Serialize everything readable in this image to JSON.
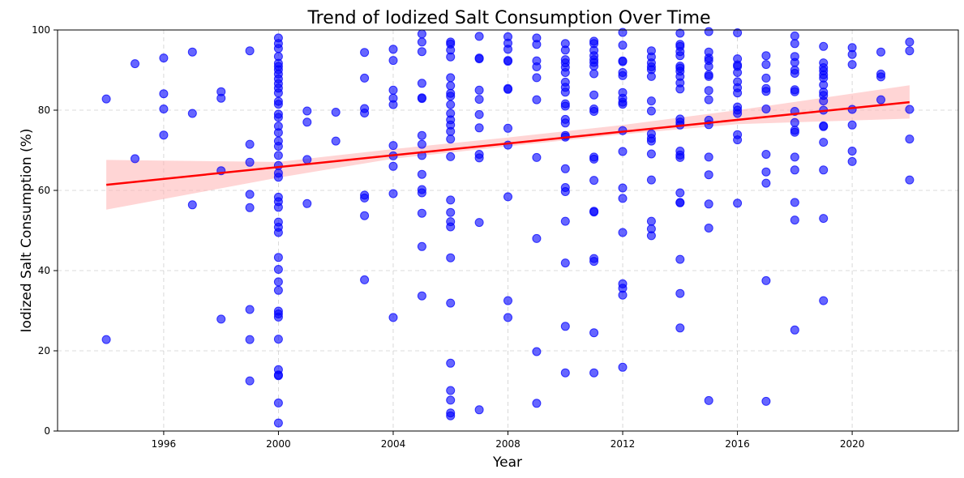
{
  "chart_data": {
    "type": "scatter",
    "title": "Trend of Iodized Salt Consumption Over Time",
    "xlabel": "Year",
    "ylabel": "Iodized Salt Consumption (%)",
    "xlim": [
      1992.3,
      2023.7
    ],
    "ylim": [
      0,
      100
    ],
    "xticks": [
      1996,
      2000,
      2004,
      2008,
      2012,
      2016,
      2020
    ],
    "yticks": [
      0,
      20,
      40,
      60,
      80,
      100
    ],
    "grid": true,
    "point_color": "#0000ff",
    "line_color": "#ff0000",
    "band_color": "#ffb3b3",
    "points": [
      [
        1994,
        82.8
      ],
      [
        1994,
        22.8
      ],
      [
        1995,
        91.6
      ],
      [
        1995,
        67.9
      ],
      [
        1996,
        93.0
      ],
      [
        1996,
        84.1
      ],
      [
        1996,
        80.3
      ],
      [
        1996,
        73.8
      ],
      [
        1997,
        94.5
      ],
      [
        1997,
        79.2
      ],
      [
        1997,
        56.4
      ],
      [
        1998,
        84.6
      ],
      [
        1998,
        83.0
      ],
      [
        1998,
        64.9
      ],
      [
        1998,
        27.9
      ],
      [
        1999,
        94.8
      ],
      [
        1999,
        71.5
      ],
      [
        1999,
        67.0
      ],
      [
        1999,
        59.0
      ],
      [
        1999,
        55.7
      ],
      [
        1999,
        30.3
      ],
      [
        1999,
        22.8
      ],
      [
        1999,
        12.5
      ],
      [
        2000,
        98.0
      ],
      [
        2000,
        96.6
      ],
      [
        2000,
        95.4
      ],
      [
        2000,
        93.4
      ],
      [
        2000,
        91.7
      ],
      [
        2000,
        90.9
      ],
      [
        2000,
        90.1
      ],
      [
        2000,
        89.0
      ],
      [
        2000,
        87.8
      ],
      [
        2000,
        86.6
      ],
      [
        2000,
        85.5
      ],
      [
        2000,
        84.3
      ],
      [
        2000,
        82.2
      ],
      [
        2000,
        81.5
      ],
      [
        2000,
        79.0
      ],
      [
        2000,
        78.2
      ],
      [
        2000,
        76.0
      ],
      [
        2000,
        74.4
      ],
      [
        2000,
        72.3
      ],
      [
        2000,
        71.0
      ],
      [
        2000,
        68.7
      ],
      [
        2000,
        66.2
      ],
      [
        2000,
        64.3
      ],
      [
        2000,
        63.3
      ],
      [
        2000,
        58.3
      ],
      [
        2000,
        57.2
      ],
      [
        2000,
        55.8
      ],
      [
        2000,
        52.1
      ],
      [
        2000,
        50.8
      ],
      [
        2000,
        49.5
      ],
      [
        2000,
        43.3
      ],
      [
        2000,
        40.3
      ],
      [
        2000,
        37.2
      ],
      [
        2000,
        35.1
      ],
      [
        2000,
        29.9
      ],
      [
        2000,
        29.2
      ],
      [
        2000,
        28.4
      ],
      [
        2000,
        22.9
      ],
      [
        2000,
        15.3
      ],
      [
        2000,
        14.0
      ],
      [
        2000,
        13.8
      ],
      [
        2000,
        7.0
      ],
      [
        2000,
        2.0
      ],
      [
        2001,
        79.8
      ],
      [
        2001,
        77.0
      ],
      [
        2001,
        67.7
      ],
      [
        2001,
        56.7
      ],
      [
        2002,
        79.5
      ],
      [
        2002,
        72.3
      ],
      [
        2003,
        94.4
      ],
      [
        2003,
        88.0
      ],
      [
        2003,
        80.4
      ],
      [
        2003,
        79.3
      ],
      [
        2003,
        58.8
      ],
      [
        2003,
        58.1
      ],
      [
        2003,
        53.7
      ],
      [
        2003,
        37.7
      ],
      [
        2004,
        95.2
      ],
      [
        2004,
        92.4
      ],
      [
        2004,
        85.0
      ],
      [
        2004,
        83.0
      ],
      [
        2004,
        81.4
      ],
      [
        2004,
        71.2
      ],
      [
        2004,
        68.6
      ],
      [
        2004,
        66.0
      ],
      [
        2004,
        59.2
      ],
      [
        2004,
        28.3
      ],
      [
        2005,
        99.0
      ],
      [
        2005,
        97.0
      ],
      [
        2005,
        94.6
      ],
      [
        2005,
        86.7
      ],
      [
        2005,
        83.1
      ],
      [
        2005,
        82.9
      ],
      [
        2005,
        73.7
      ],
      [
        2005,
        71.5
      ],
      [
        2005,
        68.7
      ],
      [
        2005,
        64.0
      ],
      [
        2005,
        60.2
      ],
      [
        2005,
        59.4
      ],
      [
        2005,
        54.3
      ],
      [
        2005,
        46.0
      ],
      [
        2005,
        33.7
      ],
      [
        2006,
        97.0
      ],
      [
        2006,
        96.5
      ],
      [
        2006,
        95.0
      ],
      [
        2006,
        93.3
      ],
      [
        2006,
        88.1
      ],
      [
        2006,
        86.1
      ],
      [
        2006,
        84.2
      ],
      [
        2006,
        83.5
      ],
      [
        2006,
        81.4
      ],
      [
        2006,
        79.2
      ],
      [
        2006,
        77.6
      ],
      [
        2006,
        76.3
      ],
      [
        2006,
        74.7
      ],
      [
        2006,
        72.8
      ],
      [
        2006,
        68.4
      ],
      [
        2006,
        57.6
      ],
      [
        2006,
        54.5
      ],
      [
        2006,
        52.2
      ],
      [
        2006,
        50.9
      ],
      [
        2006,
        43.2
      ],
      [
        2006,
        31.9
      ],
      [
        2006,
        16.9
      ],
      [
        2006,
        10.1
      ],
      [
        2006,
        7.7
      ],
      [
        2006,
        4.5
      ],
      [
        2006,
        3.8
      ],
      [
        2007,
        98.4
      ],
      [
        2007,
        93.0
      ],
      [
        2007,
        92.8
      ],
      [
        2007,
        85.0
      ],
      [
        2007,
        82.7
      ],
      [
        2007,
        78.9
      ],
      [
        2007,
        75.6
      ],
      [
        2007,
        69.0
      ],
      [
        2007,
        68.1
      ],
      [
        2007,
        52.0
      ],
      [
        2007,
        5.3
      ],
      [
        2008,
        98.3
      ],
      [
        2008,
        96.7
      ],
      [
        2008,
        95.2
      ],
      [
        2008,
        92.4
      ],
      [
        2008,
        92.2
      ],
      [
        2008,
        85.4
      ],
      [
        2008,
        85.2
      ],
      [
        2008,
        75.5
      ],
      [
        2008,
        71.3
      ],
      [
        2008,
        58.4
      ],
      [
        2008,
        32.5
      ],
      [
        2008,
        28.3
      ],
      [
        2009,
        98.0
      ],
      [
        2009,
        96.4
      ],
      [
        2009,
        92.3
      ],
      [
        2009,
        90.8
      ],
      [
        2009,
        88.1
      ],
      [
        2009,
        82.6
      ],
      [
        2009,
        68.2
      ],
      [
        2009,
        48.0
      ],
      [
        2009,
        19.8
      ],
      [
        2009,
        6.9
      ],
      [
        2010,
        96.6
      ],
      [
        2010,
        95.0
      ],
      [
        2010,
        92.6
      ],
      [
        2010,
        91.8
      ],
      [
        2010,
        90.7
      ],
      [
        2010,
        89.4
      ],
      [
        2010,
        87.0
      ],
      [
        2010,
        85.7
      ],
      [
        2010,
        84.5
      ],
      [
        2010,
        81.6
      ],
      [
        2010,
        81.0
      ],
      [
        2010,
        77.7
      ],
      [
        2010,
        76.8
      ],
      [
        2010,
        73.7
      ],
      [
        2010,
        73.3
      ],
      [
        2010,
        65.4
      ],
      [
        2010,
        60.7
      ],
      [
        2010,
        59.7
      ],
      [
        2010,
        52.3
      ],
      [
        2010,
        41.9
      ],
      [
        2010,
        26.1
      ],
      [
        2010,
        14.5
      ],
      [
        2011,
        97.2
      ],
      [
        2011,
        96.6
      ],
      [
        2011,
        94.9
      ],
      [
        2011,
        93.6
      ],
      [
        2011,
        92.6
      ],
      [
        2011,
        91.9
      ],
      [
        2011,
        91.0
      ],
      [
        2011,
        89.1
      ],
      [
        2011,
        83.8
      ],
      [
        2011,
        80.3
      ],
      [
        2011,
        79.7
      ],
      [
        2011,
        68.3
      ],
      [
        2011,
        67.8
      ],
      [
        2011,
        62.5
      ],
      [
        2011,
        54.8
      ],
      [
        2011,
        54.6
      ],
      [
        2011,
        43.0
      ],
      [
        2011,
        42.3
      ],
      [
        2011,
        24.5
      ],
      [
        2011,
        14.5
      ],
      [
        2012,
        99.4
      ],
      [
        2012,
        96.2
      ],
      [
        2012,
        92.3
      ],
      [
        2012,
        92.1
      ],
      [
        2012,
        89.4
      ],
      [
        2012,
        88.6
      ],
      [
        2012,
        84.4
      ],
      [
        2012,
        83.0
      ],
      [
        2012,
        82.0
      ],
      [
        2012,
        81.5
      ],
      [
        2012,
        74.9
      ],
      [
        2012,
        69.7
      ],
      [
        2012,
        60.6
      ],
      [
        2012,
        58.0
      ],
      [
        2012,
        49.5
      ],
      [
        2012,
        36.7
      ],
      [
        2012,
        35.6
      ],
      [
        2012,
        33.9
      ],
      [
        2012,
        15.9
      ],
      [
        2013,
        94.8
      ],
      [
        2013,
        93.3
      ],
      [
        2013,
        91.8
      ],
      [
        2013,
        90.8
      ],
      [
        2013,
        90.1
      ],
      [
        2013,
        88.4
      ],
      [
        2013,
        82.3
      ],
      [
        2013,
        79.8
      ],
      [
        2013,
        74.1
      ],
      [
        2013,
        73.0
      ],
      [
        2013,
        72.3
      ],
      [
        2013,
        69.1
      ],
      [
        2013,
        62.6
      ],
      [
        2013,
        52.3
      ],
      [
        2013,
        50.4
      ],
      [
        2013,
        48.7
      ],
      [
        2014,
        99.2
      ],
      [
        2014,
        96.4
      ],
      [
        2014,
        95.9
      ],
      [
        2014,
        94.6
      ],
      [
        2014,
        93.6
      ],
      [
        2014,
        91.0
      ],
      [
        2014,
        90.5
      ],
      [
        2014,
        89.7
      ],
      [
        2014,
        88.4
      ],
      [
        2014,
        86.8
      ],
      [
        2014,
        85.3
      ],
      [
        2014,
        77.8
      ],
      [
        2014,
        77.0
      ],
      [
        2014,
        76.3
      ],
      [
        2014,
        69.8
      ],
      [
        2014,
        68.8
      ],
      [
        2014,
        68.2
      ],
      [
        2014,
        59.4
      ],
      [
        2014,
        57.0
      ],
      [
        2014,
        56.9
      ],
      [
        2014,
        42.8
      ],
      [
        2014,
        34.3
      ],
      [
        2014,
        25.7
      ],
      [
        2015,
        99.6
      ],
      [
        2015,
        94.5
      ],
      [
        2015,
        93.0
      ],
      [
        2015,
        92.4
      ],
      [
        2015,
        90.9
      ],
      [
        2015,
        88.8
      ],
      [
        2015,
        88.4
      ],
      [
        2015,
        84.9
      ],
      [
        2015,
        82.6
      ],
      [
        2015,
        77.5
      ],
      [
        2015,
        76.4
      ],
      [
        2015,
        68.3
      ],
      [
        2015,
        63.9
      ],
      [
        2015,
        56.6
      ],
      [
        2015,
        50.6
      ],
      [
        2015,
        7.6
      ],
      [
        2016,
        99.3
      ],
      [
        2016,
        92.8
      ],
      [
        2016,
        91.3
      ],
      [
        2016,
        90.9
      ],
      [
        2016,
        89.4
      ],
      [
        2016,
        87.1
      ],
      [
        2016,
        85.6
      ],
      [
        2016,
        84.3
      ],
      [
        2016,
        80.8
      ],
      [
        2016,
        80.0
      ],
      [
        2016,
        79.2
      ],
      [
        2016,
        73.9
      ],
      [
        2016,
        72.6
      ],
      [
        2016,
        56.8
      ],
      [
        2017,
        93.6
      ],
      [
        2017,
        91.4
      ],
      [
        2017,
        88.0
      ],
      [
        2017,
        85.4
      ],
      [
        2017,
        84.7
      ],
      [
        2017,
        80.3
      ],
      [
        2017,
        69.0
      ],
      [
        2017,
        64.6
      ],
      [
        2017,
        61.8
      ],
      [
        2017,
        37.5
      ],
      [
        2017,
        7.4
      ],
      [
        2018,
        98.5
      ],
      [
        2018,
        96.6
      ],
      [
        2018,
        93.4
      ],
      [
        2018,
        91.9
      ],
      [
        2018,
        90.0
      ],
      [
        2018,
        89.2
      ],
      [
        2018,
        85.1
      ],
      [
        2018,
        84.6
      ],
      [
        2018,
        79.7
      ],
      [
        2018,
        76.9
      ],
      [
        2018,
        75.0
      ],
      [
        2018,
        74.5
      ],
      [
        2018,
        68.3
      ],
      [
        2018,
        65.1
      ],
      [
        2018,
        57.0
      ],
      [
        2018,
        52.6
      ],
      [
        2018,
        25.2
      ],
      [
        2019,
        95.9
      ],
      [
        2019,
        91.8
      ],
      [
        2019,
        90.6
      ],
      [
        2019,
        89.8
      ],
      [
        2019,
        88.8
      ],
      [
        2019,
        88.0
      ],
      [
        2019,
        86.3
      ],
      [
        2019,
        84.5
      ],
      [
        2019,
        83.7
      ],
      [
        2019,
        82.3
      ],
      [
        2019,
        80.0
      ],
      [
        2019,
        76.1
      ],
      [
        2019,
        75.9
      ],
      [
        2019,
        72.0
      ],
      [
        2019,
        65.1
      ],
      [
        2019,
        53.0
      ],
      [
        2019,
        32.5
      ],
      [
        2020,
        95.6
      ],
      [
        2020,
        93.9
      ],
      [
        2020,
        91.4
      ],
      [
        2020,
        80.2
      ],
      [
        2020,
        76.3
      ],
      [
        2020,
        69.8
      ],
      [
        2020,
        67.2
      ],
      [
        2021,
        94.5
      ],
      [
        2021,
        89.0
      ],
      [
        2021,
        88.3
      ],
      [
        2021,
        82.6
      ],
      [
        2022,
        97.0
      ],
      [
        2022,
        94.8
      ],
      [
        2022,
        80.2
      ],
      [
        2022,
        72.8
      ],
      [
        2022,
        62.6
      ]
    ],
    "regression_line": {
      "x": [
        1994,
        2022
      ],
      "y": [
        61.4,
        82.0
      ]
    },
    "confidence_band": {
      "x": [
        1994,
        2000,
        2004,
        2008,
        2012,
        2016,
        2022
      ],
      "lower": [
        55.2,
        63.2,
        67.9,
        71.0,
        74.0,
        76.5,
        77.9
      ],
      "upper": [
        67.6,
        67.1,
        70.3,
        73.2,
        76.3,
        80.0,
        86.2
      ]
    }
  }
}
